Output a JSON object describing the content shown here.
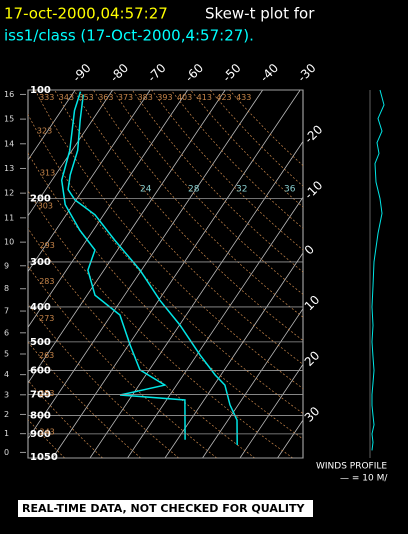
{
  "header": {
    "title_time": "17-oct-2000,04:57:27",
    "title_text": "Skew-t plot for",
    "subtitle": "iss1/class (17-Oct-2000,4:57:27)."
  },
  "chart_data": {
    "type": "skew-t",
    "plim": [
      100,
      1050
    ],
    "pticks": [
      100,
      200,
      300,
      400,
      500,
      600,
      700,
      800,
      900,
      1050
    ],
    "height_ticks": [
      0,
      1,
      2,
      3,
      4,
      5,
      6,
      7,
      8,
      9,
      10,
      11,
      12,
      13,
      14,
      15,
      16
    ],
    "tticks_top": [
      -90,
      -80,
      -70,
      -60,
      -50,
      -40,
      -30
    ],
    "tticks_right": [
      -20,
      -10,
      0,
      10,
      20,
      30
    ],
    "theta_labels": [
      243,
      253,
      263,
      273,
      283,
      293,
      303,
      313,
      323,
      333,
      343,
      353,
      363,
      373,
      383,
      393,
      403,
      413,
      423,
      433
    ],
    "moist_labels": [
      24,
      28,
      32,
      36
    ],
    "series": [
      {
        "color": "#00e5e5",
        "pressure": [
          966,
          824,
          748,
          659,
          618,
          544,
          449,
          383,
          316,
          261,
          222,
          202,
          189,
          172,
          147,
          121,
          103
        ],
        "values": [
          16.9,
          12.4,
          7.8,
          2.9,
          -1.5,
          -9.1,
          -19.9,
          -29.7,
          -40.4,
          -52.5,
          -62.3,
          -70.3,
          -74.0,
          -76.1,
          -78.5,
          -83.3,
          -87.0
        ]
      },
      {
        "color": "#00e5e5",
        "pressure": [
          935,
          725,
          702,
          659,
          598,
          510,
          421,
          371,
          316,
          278,
          245,
          208,
          178,
          147,
          114,
          101
        ],
        "values": [
          2.1,
          -5.1,
          -23.3,
          -13.1,
          -22.5,
          -29.6,
          -37.7,
          -47.9,
          -54.3,
          -56.0,
          -63.6,
          -72.1,
          -77.4,
          -80.6,
          -86.5,
          -88.3
        ]
      }
    ],
    "winds": {
      "title": "WINDS PROFILE",
      "scale_label": "— = 10 M/",
      "pressure": [
        1000,
        950,
        900,
        850,
        800,
        750,
        700,
        650,
        600,
        550,
        500,
        450,
        400,
        350,
        300,
        250,
        220,
        200,
        180,
        160,
        150,
        140,
        130,
        120,
        110,
        100
      ],
      "speed": [
        2,
        3,
        2,
        4,
        3,
        2,
        2,
        3,
        4,
        3,
        2,
        3,
        2,
        3,
        4,
        8,
        12,
        10,
        6,
        5,
        9,
        7,
        12,
        8,
        14,
        10
      ]
    }
  },
  "footer": "REAL-TIME DATA, NOT CHECKED FOR QUALITY"
}
